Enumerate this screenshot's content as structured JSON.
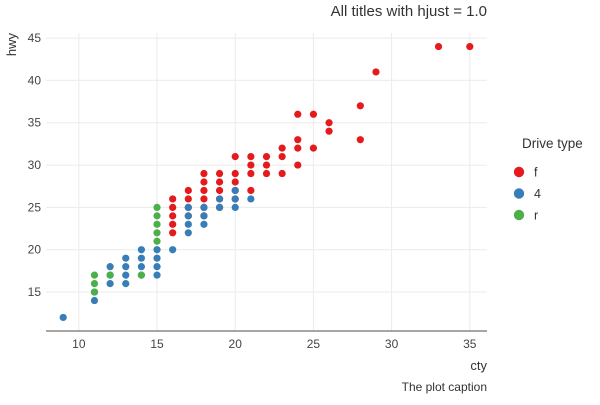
{
  "chart_data": {
    "type": "scatter",
    "title": "All titles with hjust = 1.0",
    "caption": "The plot caption",
    "xlabel": "cty",
    "ylabel": "hwy",
    "xlim": [
      7.9,
      36.1
    ],
    "ylim": [
      10.4,
      45.6
    ],
    "x_ticks": [
      10,
      15,
      20,
      25,
      30,
      35
    ],
    "y_ticks": [
      15,
      20,
      25,
      30,
      35,
      40,
      45
    ],
    "grid": true,
    "legend": {
      "title": "Drive type",
      "placement": "right",
      "items": [
        {
          "label": "f",
          "color": "#E41A1C"
        },
        {
          "label": "4",
          "color": "#377EB8"
        },
        {
          "label": "r",
          "color": "#4DAF4A"
        }
      ]
    },
    "series": [
      {
        "name": "f",
        "color": "#E41A1C",
        "points": [
          [
            16,
            22
          ],
          [
            16,
            23
          ],
          [
            16,
            24
          ],
          [
            16,
            25
          ],
          [
            16,
            26
          ],
          [
            17,
            24
          ],
          [
            17,
            25
          ],
          [
            17,
            26
          ],
          [
            17,
            27
          ],
          [
            18,
            24
          ],
          [
            18,
            25
          ],
          [
            18,
            26
          ],
          [
            18,
            27
          ],
          [
            18,
            28
          ],
          [
            18,
            29
          ],
          [
            19,
            25
          ],
          [
            19,
            26
          ],
          [
            19,
            27
          ],
          [
            19,
            28
          ],
          [
            19,
            29
          ],
          [
            20,
            26
          ],
          [
            20,
            27
          ],
          [
            20,
            28
          ],
          [
            20,
            29
          ],
          [
            20,
            31
          ],
          [
            21,
            27
          ],
          [
            21,
            29
          ],
          [
            21,
            30
          ],
          [
            21,
            31
          ],
          [
            22,
            29
          ],
          [
            22,
            30
          ],
          [
            22,
            31
          ],
          [
            23,
            29
          ],
          [
            23,
            31
          ],
          [
            23,
            32
          ],
          [
            24,
            30
          ],
          [
            24,
            32
          ],
          [
            24,
            33
          ],
          [
            24,
            36
          ],
          [
            25,
            32
          ],
          [
            25,
            36
          ],
          [
            26,
            34
          ],
          [
            26,
            35
          ],
          [
            28,
            33
          ],
          [
            28,
            37
          ],
          [
            29,
            41
          ],
          [
            33,
            44
          ],
          [
            35,
            44
          ]
        ]
      },
      {
        "name": "4",
        "color": "#377EB8",
        "points": [
          [
            9,
            12
          ],
          [
            11,
            14
          ],
          [
            11,
            15
          ],
          [
            12,
            16
          ],
          [
            12,
            17
          ],
          [
            12,
            18
          ],
          [
            13,
            16
          ],
          [
            13,
            17
          ],
          [
            13,
            18
          ],
          [
            13,
            19
          ],
          [
            14,
            17
          ],
          [
            14,
            18
          ],
          [
            14,
            19
          ],
          [
            14,
            20
          ],
          [
            15,
            17
          ],
          [
            15,
            18
          ],
          [
            15,
            19
          ],
          [
            15,
            20
          ],
          [
            16,
            20
          ],
          [
            17,
            22
          ],
          [
            17,
            23
          ],
          [
            17,
            24
          ],
          [
            17,
            25
          ],
          [
            18,
            23
          ],
          [
            18,
            24
          ],
          [
            18,
            25
          ],
          [
            19,
            25
          ],
          [
            19,
            26
          ],
          [
            20,
            25
          ],
          [
            20,
            26
          ],
          [
            20,
            27
          ],
          [
            21,
            26
          ]
        ]
      },
      {
        "name": "r",
        "color": "#4DAF4A",
        "points": [
          [
            11,
            15
          ],
          [
            11,
            16
          ],
          [
            11,
            17
          ],
          [
            12,
            17
          ],
          [
            14,
            17
          ],
          [
            15,
            21
          ],
          [
            15,
            22
          ],
          [
            15,
            23
          ],
          [
            15,
            24
          ],
          [
            15,
            25
          ]
        ]
      }
    ]
  }
}
